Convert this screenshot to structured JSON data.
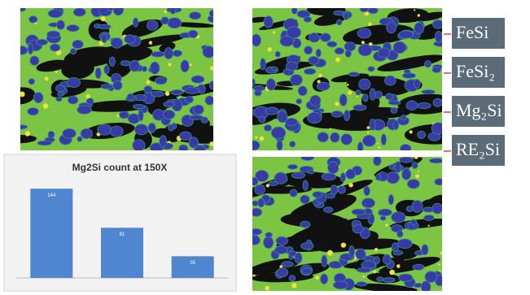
{
  "legend": {
    "items": [
      "FeSi",
      "FeSi₂",
      "Mg₂Si",
      "RE₂Si"
    ]
  },
  "chart_data": {
    "type": "bar",
    "title": "Mg2Si count at 150X",
    "categories": [
      null,
      null,
      null
    ],
    "values": [
      144,
      81,
      35
    ],
    "color": "#4f86cf",
    "ylim": [
      0,
      160
    ]
  }
}
